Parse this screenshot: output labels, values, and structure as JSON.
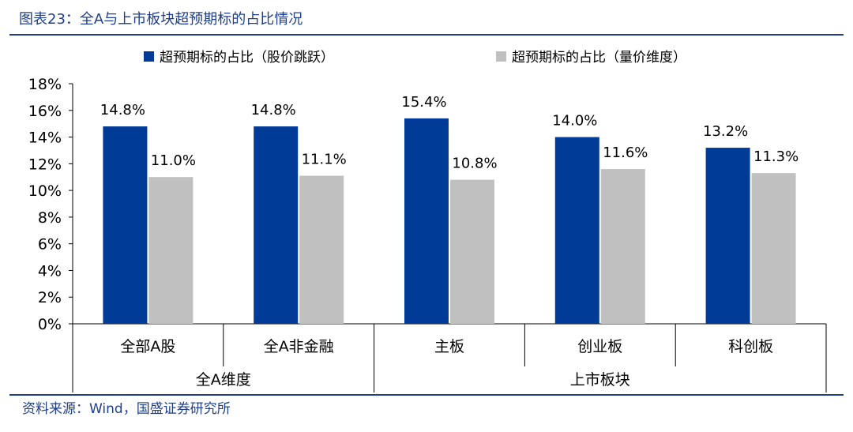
{
  "figure_title": "图表23：全A与上市板块超预期标的占比情况",
  "source": "资料来源：Wind，国盛证券研究所",
  "colors": {
    "series1": "#003b98",
    "series2": "#c0c0c0",
    "title": "#1f3f8a"
  },
  "chart_data": {
    "type": "bar",
    "title": "",
    "xlabel": "",
    "ylabel": "",
    "ylim": [
      0,
      18
    ],
    "yticks": [
      "0%",
      "2%",
      "4%",
      "6%",
      "8%",
      "10%",
      "12%",
      "14%",
      "16%",
      "18%"
    ],
    "categories": [
      "全部A股",
      "全A非金融",
      "主板",
      "创业板",
      "科创板"
    ],
    "groups": [
      {
        "label": "全A维度",
        "span": 2
      },
      {
        "label": "上市板块",
        "span": 3
      }
    ],
    "series": [
      {
        "name": "超预期标的占比（股价跳跃）",
        "values": [
          14.8,
          14.8,
          15.4,
          14.0,
          13.2
        ],
        "labels": [
          "14.8%",
          "14.8%",
          "15.4%",
          "14.0%",
          "13.2%"
        ]
      },
      {
        "name": "超预期标的占比（量价维度）",
        "values": [
          11.0,
          11.1,
          10.8,
          11.6,
          11.3
        ],
        "labels": [
          "11.0%",
          "11.1%",
          "10.8%",
          "11.6%",
          "11.3%"
        ]
      }
    ],
    "legend_position": "top",
    "grid": false
  }
}
